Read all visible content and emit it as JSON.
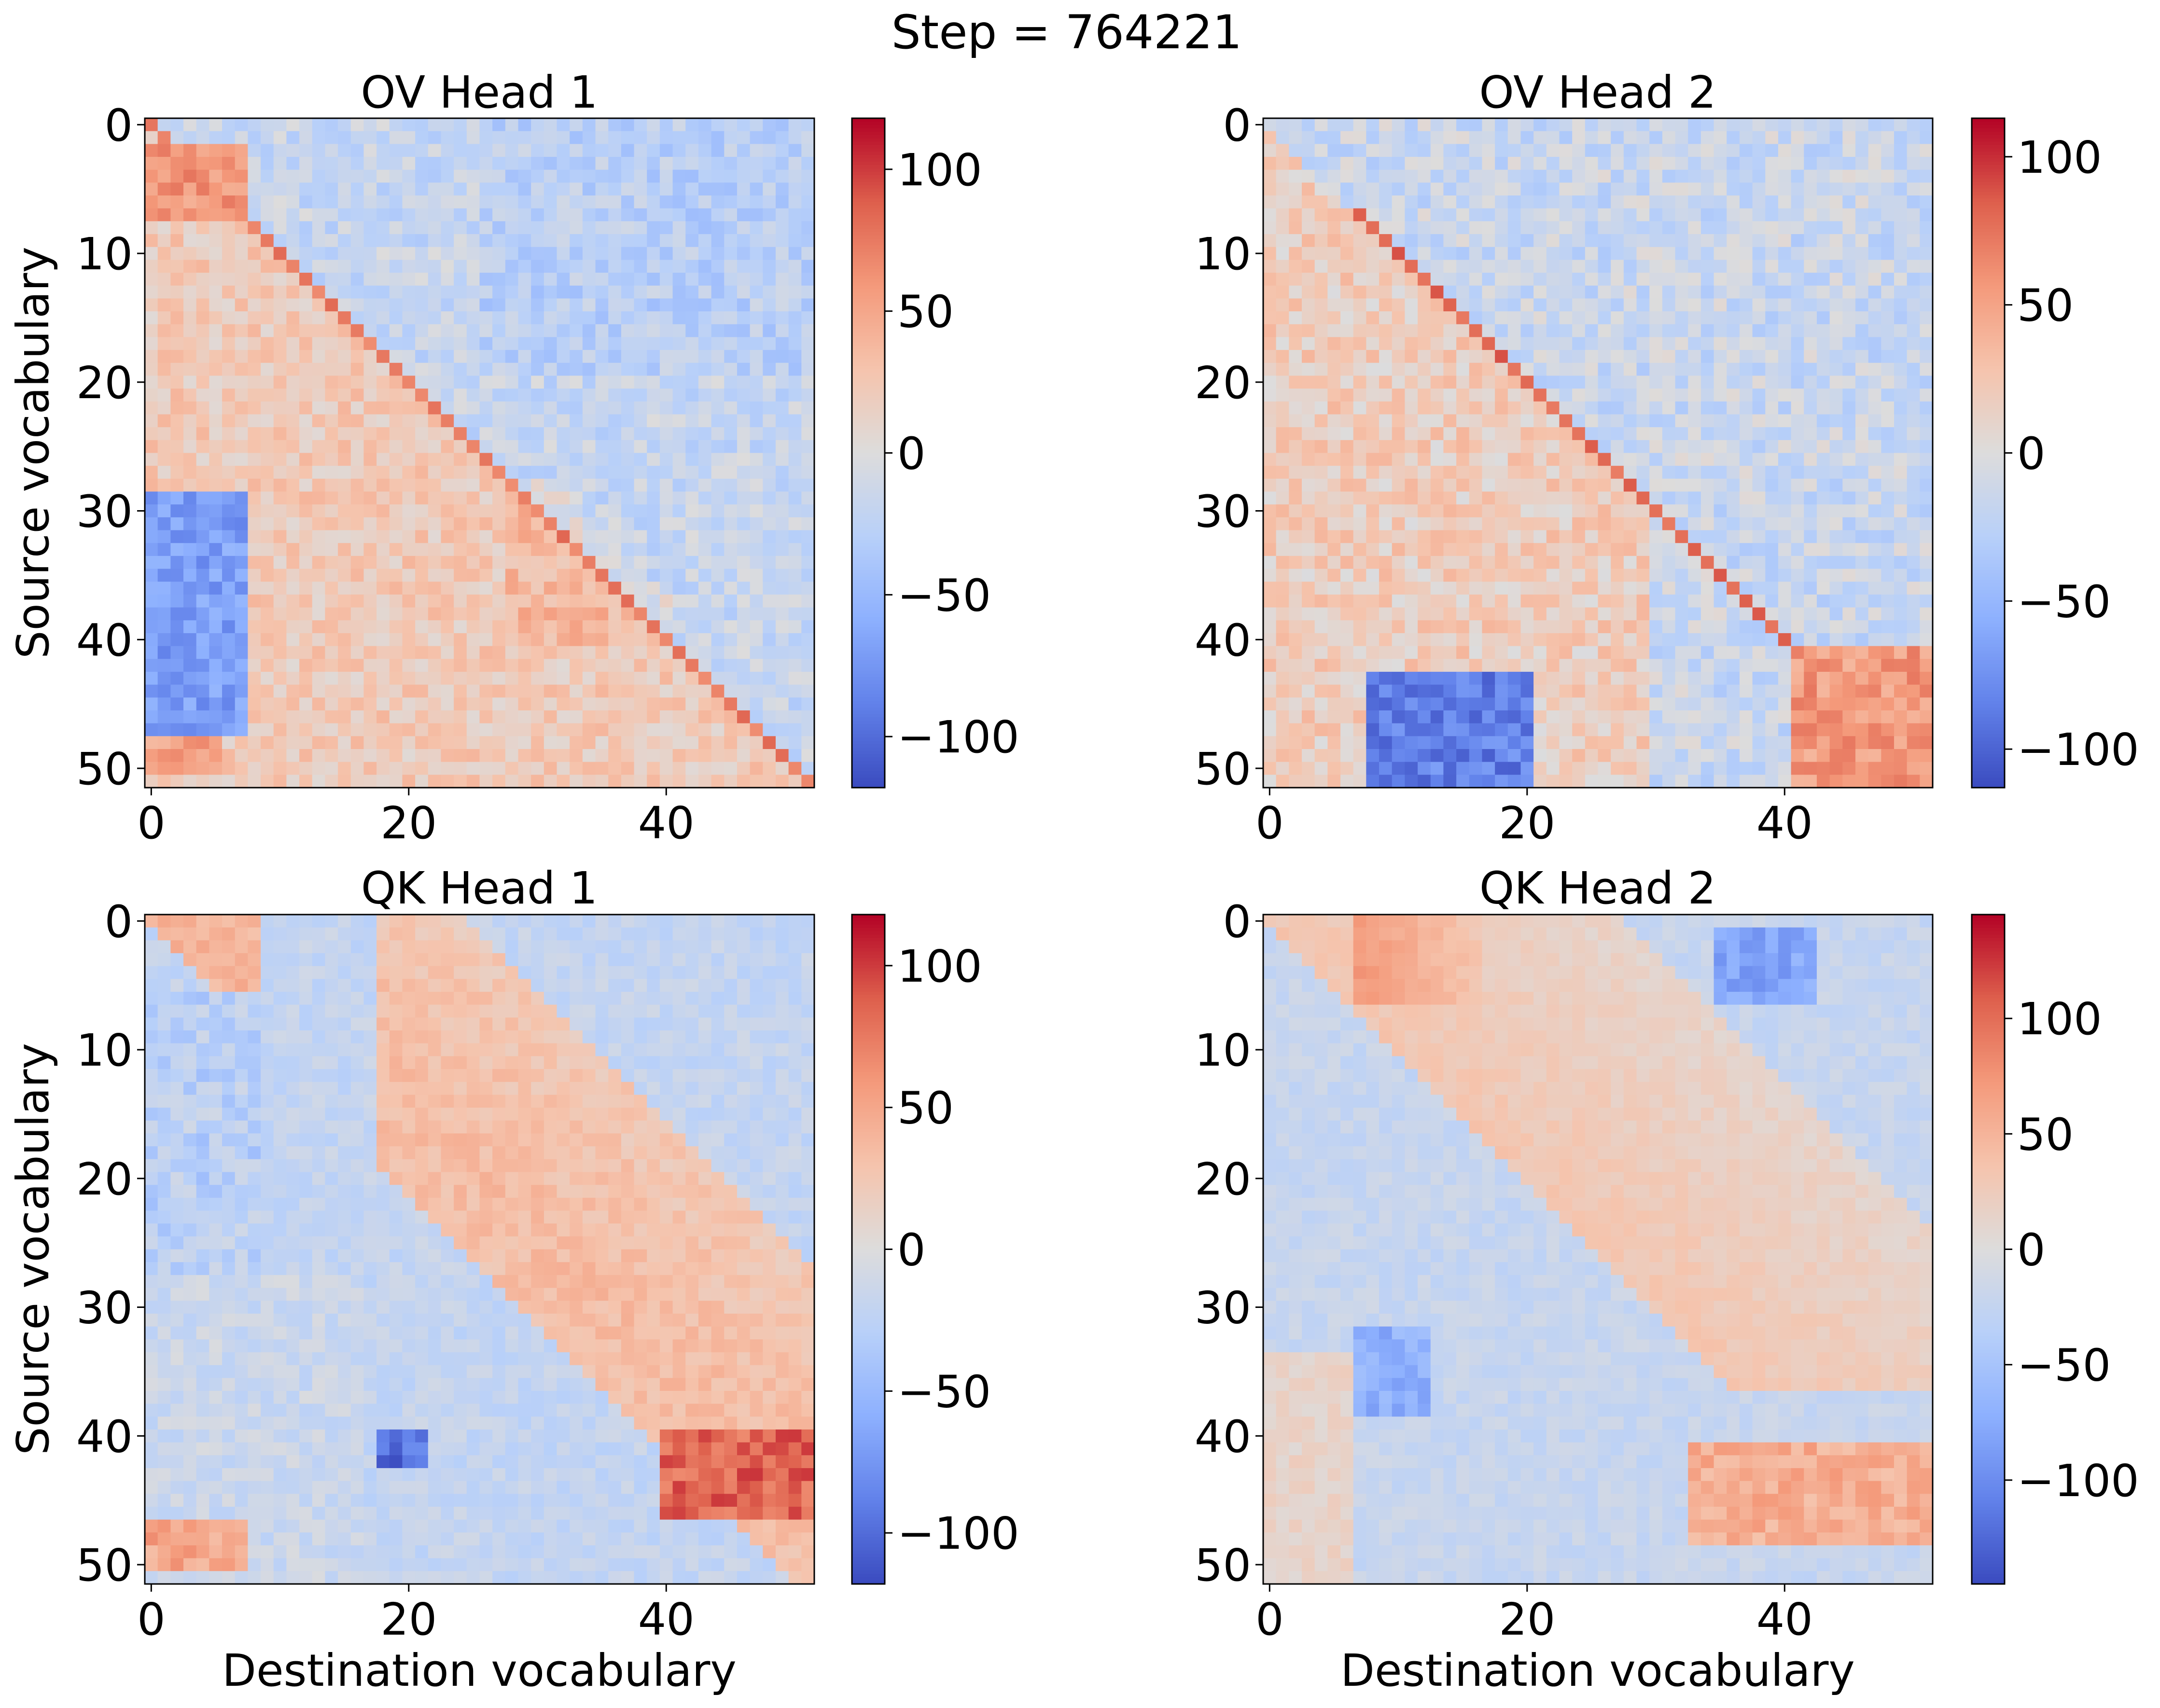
{
  "chart_data": {
    "type": "heatmap",
    "title": "Step = 764221",
    "colormap": "coolwarm",
    "grid": false,
    "n_vocab": 52,
    "panels": [
      {
        "id": "ov1",
        "title": "OV Head 1",
        "xlabel": "",
        "ylabel": "Source vocabulary",
        "xticks": [
          0,
          20,
          40
        ],
        "yticks": [
          0,
          10,
          20,
          30,
          40,
          50
        ],
        "cbar_range": [
          -118,
          118
        ],
        "cbar_ticks": [
          100,
          50,
          0,
          -50,
          -100
        ],
        "features": [
          {
            "kind": "diagonal",
            "value": 75,
            "from": 0,
            "to": 51
          },
          {
            "kind": "block",
            "rows": [
              2,
              7
            ],
            "cols": [
              0,
              7
            ],
            "value": 60
          },
          {
            "kind": "block",
            "rows": [
              29,
              47
            ],
            "cols": [
              0,
              7
            ],
            "value": -70
          },
          {
            "kind": "block",
            "rows": [
              48,
              50
            ],
            "cols": [
              0,
              5
            ],
            "value": 55
          },
          {
            "kind": "band_below_diag",
            "value": 35
          }
        ]
      },
      {
        "id": "ov2",
        "title": "OV Head 2",
        "xlabel": "",
        "ylabel": "",
        "xticks": [
          0,
          20,
          40
        ],
        "yticks": [
          0,
          10,
          20,
          30,
          40,
          50
        ],
        "cbar_range": [
          -113,
          113
        ],
        "cbar_ticks": [
          100,
          50,
          0,
          -50,
          -100
        ],
        "features": [
          {
            "kind": "diagonal",
            "value": 80,
            "from": 7,
            "to": 51
          },
          {
            "kind": "block",
            "rows": [
              41,
              51
            ],
            "cols": [
              41,
              51
            ],
            "value": 55
          },
          {
            "kind": "block",
            "rows": [
              43,
              51
            ],
            "cols": [
              8,
              20
            ],
            "value": -85
          },
          {
            "kind": "band_below_diag",
            "value": 25
          }
        ]
      },
      {
        "id": "qk1",
        "title": "QK Head 1",
        "xlabel": "Destination vocabulary",
        "ylabel": "Source vocabulary",
        "xticks": [
          0,
          20,
          40
        ],
        "yticks": [
          0,
          10,
          20,
          30,
          40,
          50
        ],
        "cbar_range": [
          -118,
          118
        ],
        "cbar_ticks": [
          100,
          50,
          0,
          -50,
          -100
        ],
        "features": [
          {
            "kind": "band_above_diag",
            "rows": [
              6,
              40
            ],
            "value": 55
          },
          {
            "kind": "block",
            "rows": [
              40,
              46
            ],
            "cols": [
              40,
              51
            ],
            "value": 85
          },
          {
            "kind": "block",
            "rows": [
              40,
              42
            ],
            "cols": [
              18,
              21
            ],
            "value": -100
          },
          {
            "kind": "block",
            "rows": [
              47,
              50
            ],
            "cols": [
              0,
              7
            ],
            "value": 50
          }
        ]
      },
      {
        "id": "qk2",
        "title": "QK Head 2",
        "xlabel": "Destination vocabulary",
        "ylabel": "",
        "xticks": [
          0,
          20,
          40
        ],
        "yticks": [
          0,
          10,
          20,
          30,
          40,
          50
        ],
        "cbar_range": [
          -145,
          145
        ],
        "cbar_ticks": [
          100,
          50,
          0,
          -50,
          -100
        ],
        "features": [
          {
            "kind": "band_above_diag",
            "rows": [
              1,
              20
            ],
            "value": 60
          },
          {
            "kind": "band_above_diag",
            "rows": [
              20,
              36
            ],
            "value": 55
          },
          {
            "kind": "block",
            "rows": [
              1,
              6
            ],
            "cols": [
              35,
              42
            ],
            "value": -80
          },
          {
            "kind": "block",
            "rows": [
              32,
              38
            ],
            "cols": [
              7,
              12
            ],
            "value": -70
          },
          {
            "kind": "block",
            "rows": [
              41,
              48
            ],
            "cols": [
              33,
              51
            ],
            "value": 55
          }
        ]
      }
    ]
  }
}
